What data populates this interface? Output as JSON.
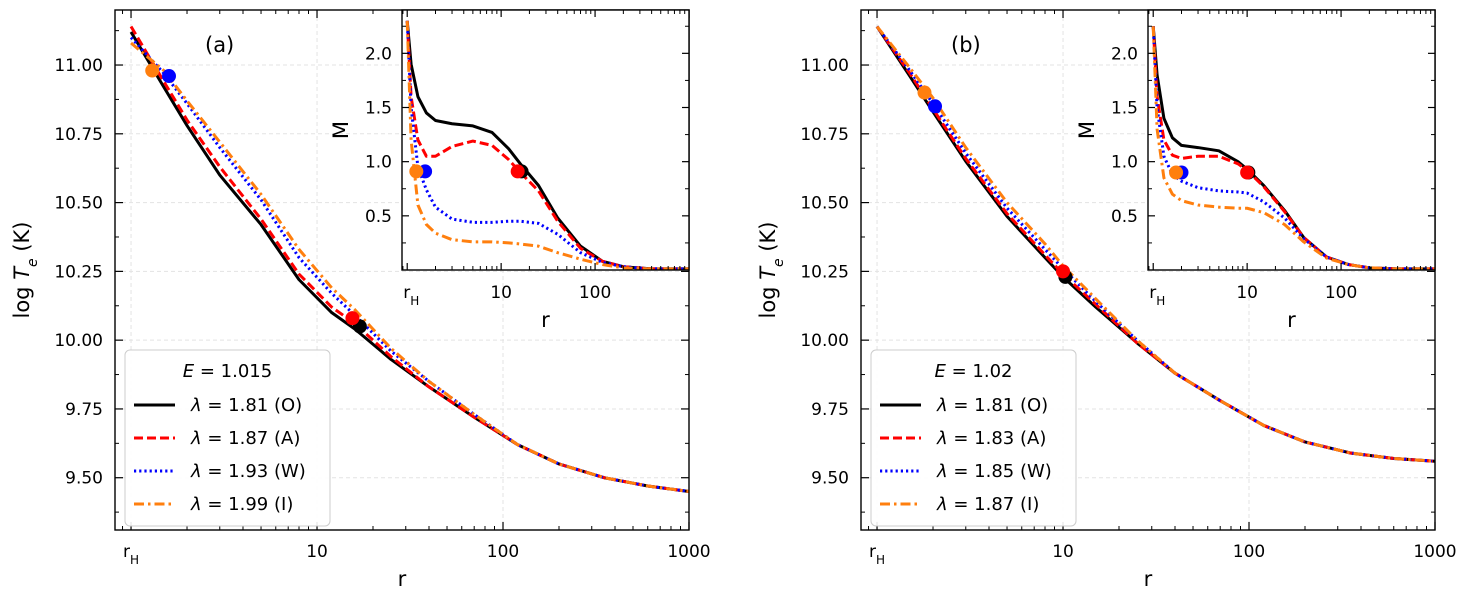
{
  "chart_data": [
    {
      "type": "line",
      "panel_label": "(a)",
      "xscale": "log",
      "xlim": [
        0.82,
        1000
      ],
      "ylim": [
        9.31,
        11.2
      ],
      "xlabel": "r",
      "ylabel": "log T_e (K)",
      "xticks": [
        {
          "value": 1,
          "label": "r_H"
        },
        {
          "value": 10,
          "label": "10"
        },
        {
          "value": 100,
          "label": "100"
        },
        {
          "value": 1000,
          "label": "1000"
        }
      ],
      "yticks": [
        9.5,
        9.75,
        10.0,
        10.25,
        10.5,
        10.75,
        11.0
      ],
      "ytick_labels": [
        "9.50",
        "9.75",
        "10.00",
        "10.25",
        "10.50",
        "10.75",
        "11.00"
      ],
      "grid": true,
      "legend": {
        "placement": "lower-left",
        "title": "E = 1.015",
        "title_E": "E",
        "title_value": "1.015"
      },
      "series": [
        {
          "name": "λ = 1.81 (O)",
          "lambda_value": "1.81",
          "tag": "(O)",
          "color": "#000000",
          "style": "solid",
          "x": [
            1,
            1.5,
            2,
            3,
            5,
            8,
            12,
            16,
            25,
            40,
            70,
            120,
            200,
            350,
            600,
            1000
          ],
          "y": [
            11.12,
            10.92,
            10.78,
            10.6,
            10.42,
            10.22,
            10.1,
            10.04,
            9.93,
            9.83,
            9.72,
            9.62,
            9.55,
            9.5,
            9.47,
            9.45
          ]
        },
        {
          "name": "λ = 1.87 (A)",
          "lambda_value": "1.87",
          "tag": "(A)",
          "color": "#ff0000",
          "style": "dashed",
          "x": [
            1,
            1.5,
            2,
            3,
            5,
            8,
            12,
            16,
            25,
            40,
            70,
            120,
            200,
            350,
            600,
            1000
          ],
          "y": [
            11.14,
            10.94,
            10.8,
            10.63,
            10.44,
            10.24,
            10.12,
            10.06,
            9.94,
            9.83,
            9.72,
            9.62,
            9.55,
            9.5,
            9.47,
            9.45
          ]
        },
        {
          "name": "λ = 1.93 (W)",
          "lambda_value": "1.93",
          "tag": "(W)",
          "color": "#0000ff",
          "style": "dotted",
          "x": [
            1,
            1.5,
            2,
            3,
            5,
            8,
            12,
            16,
            25,
            40,
            70,
            120,
            200,
            350,
            600,
            1000
          ],
          "y": [
            11.1,
            10.97,
            10.86,
            10.7,
            10.51,
            10.3,
            10.17,
            10.09,
            9.96,
            9.85,
            9.73,
            9.62,
            9.55,
            9.5,
            9.47,
            9.45
          ]
        },
        {
          "name": "λ = 1.99 (I)",
          "lambda_value": "1.99",
          "tag": "(I)",
          "color": "#ff7f0e",
          "style": "dashdot",
          "x": [
            1,
            1.5,
            2,
            3,
            5,
            8,
            12,
            16,
            25,
            40,
            70,
            120,
            200,
            350,
            600,
            1000
          ],
          "y": [
            11.08,
            10.98,
            10.87,
            10.72,
            10.53,
            10.33,
            10.19,
            10.11,
            9.97,
            9.85,
            9.73,
            9.62,
            9.55,
            9.5,
            9.47,
            9.45
          ]
        }
      ],
      "markers": [
        {
          "series": "O",
          "x": 1.6,
          "y": 10.96,
          "color": "#0000ff"
        },
        {
          "series": "I",
          "x": 1.3,
          "y": 10.98,
          "color": "#ff7f0e"
        },
        {
          "series": "O",
          "x": 17.0,
          "y": 10.05,
          "color": "#000000"
        },
        {
          "series": "A",
          "x": 15.5,
          "y": 10.08,
          "color": "#ff0000"
        }
      ],
      "inset": {
        "xscale": "log",
        "xlim": [
          0.88,
          1000
        ],
        "ylim": [
          0.0,
          2.4
        ],
        "xlabel": "r",
        "ylabel": "M",
        "xticks": [
          {
            "value": 1,
            "label": "r_H"
          },
          {
            "value": 10,
            "label": "10"
          },
          {
            "value": 100,
            "label": "100"
          }
        ],
        "yticks": [
          0.5,
          1.0,
          1.5,
          2.0
        ],
        "ytick_labels": [
          "0.5",
          "1.0",
          "1.5",
          "2.0"
        ],
        "series": [
          {
            "name": "O",
            "color": "#000000",
            "style": "solid",
            "x": [
              1,
              1.1,
              1.3,
              1.6,
              2,
              3,
              5,
              8,
              12,
              16,
              25,
              40,
              70,
              120,
              200,
              400,
              1000
            ],
            "y": [
              2.3,
              1.9,
              1.6,
              1.45,
              1.38,
              1.35,
              1.33,
              1.27,
              1.12,
              0.98,
              0.78,
              0.48,
              0.22,
              0.08,
              0.03,
              0.01,
              0.01
            ]
          },
          {
            "name": "A",
            "color": "#ff0000",
            "style": "dashed",
            "x": [
              1,
              1.1,
              1.3,
              1.6,
              2,
              3,
              5,
              8,
              12,
              16,
              25,
              40,
              70,
              120,
              200,
              400,
              1000
            ],
            "y": [
              2.3,
              1.6,
              1.2,
              1.05,
              1.05,
              1.14,
              1.19,
              1.15,
              1.02,
              0.9,
              0.73,
              0.45,
              0.2,
              0.08,
              0.03,
              0.01,
              0.01
            ]
          },
          {
            "name": "W",
            "color": "#0000ff",
            "style": "dotted",
            "x": [
              1,
              1.1,
              1.3,
              1.6,
              2,
              3,
              5,
              8,
              12,
              16,
              25,
              40,
              70,
              120,
              200,
              400,
              1000
            ],
            "y": [
              2.3,
              1.5,
              0.95,
              0.74,
              0.58,
              0.47,
              0.44,
              0.44,
              0.45,
              0.45,
              0.43,
              0.33,
              0.16,
              0.07,
              0.03,
              0.01,
              0.01
            ]
          },
          {
            "name": "I",
            "color": "#ff7f0e",
            "style": "dashdot",
            "x": [
              1,
              1.1,
              1.3,
              1.6,
              2,
              3,
              5,
              8,
              12,
              16,
              25,
              40,
              70,
              120,
              200,
              400,
              1000
            ],
            "y": [
              2.3,
              1.2,
              0.6,
              0.42,
              0.34,
              0.28,
              0.26,
              0.26,
              0.25,
              0.24,
              0.22,
              0.16,
              0.1,
              0.05,
              0.02,
              0.01,
              0.01
            ]
          }
        ],
        "markers": [
          {
            "x": 1.55,
            "y": 0.91,
            "color": "#0000ff"
          },
          {
            "x": 1.25,
            "y": 0.91,
            "color": "#ff7f0e"
          },
          {
            "x": 16.5,
            "y": 0.91,
            "color": "#000000"
          },
          {
            "x": 15.0,
            "y": 0.91,
            "color": "#ff0000"
          }
        ]
      }
    },
    {
      "type": "line",
      "panel_label": "(b)",
      "xscale": "log",
      "xlim": [
        0.82,
        1000
      ],
      "ylim": [
        9.31,
        11.2
      ],
      "xlabel": "r",
      "ylabel": "log T_e (K)",
      "xticks": [
        {
          "value": 1,
          "label": "r_H"
        },
        {
          "value": 10,
          "label": "10"
        },
        {
          "value": 100,
          "label": "100"
        },
        {
          "value": 1000,
          "label": "1000"
        }
      ],
      "yticks": [
        9.5,
        9.75,
        10.0,
        10.25,
        10.5,
        10.75,
        11.0
      ],
      "ytick_labels": [
        "9.50",
        "9.75",
        "10.00",
        "10.25",
        "10.50",
        "10.75",
        "11.00"
      ],
      "grid": true,
      "legend": {
        "placement": "lower-left",
        "title": "E = 1.02",
        "title_E": "E",
        "title_value": "1.02"
      },
      "series": [
        {
          "name": "λ = 1.81 (O)",
          "lambda_value": "1.81",
          "tag": "(O)",
          "color": "#000000",
          "style": "solid",
          "x": [
            1,
            1.5,
            2,
            3,
            5,
            8,
            10,
            15,
            25,
            40,
            70,
            120,
            200,
            350,
            600,
            1000
          ],
          "y": [
            11.14,
            10.96,
            10.83,
            10.65,
            10.45,
            10.3,
            10.23,
            10.12,
            9.99,
            9.88,
            9.78,
            9.69,
            9.63,
            9.59,
            9.57,
            9.56
          ]
        },
        {
          "name": "λ = 1.83 (A)",
          "lambda_value": "1.83",
          "tag": "(A)",
          "color": "#ff0000",
          "style": "dashed",
          "x": [
            1,
            1.5,
            2,
            3,
            5,
            8,
            10,
            15,
            25,
            40,
            70,
            120,
            200,
            350,
            600,
            1000
          ],
          "y": [
            11.14,
            10.97,
            10.84,
            10.66,
            10.46,
            10.31,
            10.24,
            10.13,
            9.99,
            9.88,
            9.78,
            9.69,
            9.63,
            9.59,
            9.57,
            9.56
          ]
        },
        {
          "name": "λ = 1.85 (W)",
          "lambda_value": "1.85",
          "tag": "(W)",
          "color": "#0000ff",
          "style": "dotted",
          "x": [
            1,
            1.5,
            2,
            3,
            5,
            8,
            10,
            15,
            25,
            40,
            70,
            120,
            200,
            350,
            600,
            1000
          ],
          "y": [
            11.14,
            10.98,
            10.86,
            10.68,
            10.48,
            10.33,
            10.26,
            10.14,
            10.0,
            9.88,
            9.78,
            9.69,
            9.63,
            9.59,
            9.57,
            9.56
          ]
        },
        {
          "name": "λ = 1.87 (I)",
          "lambda_value": "1.87",
          "tag": "(I)",
          "color": "#ff7f0e",
          "style": "dashdot",
          "x": [
            1,
            1.5,
            2,
            3,
            5,
            8,
            10,
            15,
            25,
            40,
            70,
            120,
            200,
            350,
            600,
            1000
          ],
          "y": [
            11.14,
            10.99,
            10.88,
            10.7,
            10.5,
            10.35,
            10.27,
            10.15,
            10.0,
            9.88,
            9.78,
            9.69,
            9.63,
            9.59,
            9.57,
            9.56
          ]
        }
      ],
      "markers": [
        {
          "series": "W",
          "x": 2.05,
          "y": 10.85,
          "color": "#0000ff"
        },
        {
          "series": "I",
          "x": 1.8,
          "y": 10.9,
          "color": "#ff7f0e"
        },
        {
          "series": "O",
          "x": 10.3,
          "y": 10.23,
          "color": "#000000"
        },
        {
          "series": "A",
          "x": 10.0,
          "y": 10.25,
          "color": "#ff0000"
        }
      ],
      "inset": {
        "xscale": "log",
        "xlim": [
          0.88,
          1000
        ],
        "ylim": [
          0.0,
          2.4
        ],
        "xlabel": "r",
        "ylabel": "M",
        "xticks": [
          {
            "value": 1,
            "label": "r_H"
          },
          {
            "value": 10,
            "label": "10"
          },
          {
            "value": 100,
            "label": "100"
          }
        ],
        "yticks": [
          0.5,
          1.0,
          1.5,
          2.0
        ],
        "ytick_labels": [
          "0.5",
          "1.0",
          "1.5",
          "2.0"
        ],
        "series": [
          {
            "name": "O",
            "color": "#000000",
            "style": "solid",
            "x": [
              1,
              1.1,
              1.3,
              1.6,
              2,
              3,
              5,
              8,
              10,
              15,
              25,
              40,
              70,
              120,
              200,
              400,
              1000
            ],
            "y": [
              2.25,
              1.8,
              1.4,
              1.22,
              1.15,
              1.13,
              1.1,
              1.0,
              0.93,
              0.78,
              0.55,
              0.3,
              0.12,
              0.05,
              0.02,
              0.01,
              0.01
            ]
          },
          {
            "name": "A",
            "color": "#ff0000",
            "style": "dashed",
            "x": [
              1,
              1.1,
              1.3,
              1.6,
              2,
              3,
              5,
              8,
              10,
              15,
              25,
              40,
              70,
              120,
              200,
              400,
              1000
            ],
            "y": [
              2.25,
              1.6,
              1.2,
              1.06,
              1.03,
              1.05,
              1.05,
              0.98,
              0.92,
              0.77,
              0.54,
              0.3,
              0.12,
              0.05,
              0.02,
              0.01,
              0.01
            ]
          },
          {
            "name": "W",
            "color": "#0000ff",
            "style": "dotted",
            "x": [
              1,
              1.1,
              1.3,
              1.6,
              2,
              3,
              5,
              8,
              10,
              15,
              25,
              40,
              70,
              120,
              200,
              400,
              1000
            ],
            "y": [
              2.25,
              1.5,
              1.05,
              0.88,
              0.82,
              0.76,
              0.73,
              0.72,
              0.71,
              0.63,
              0.48,
              0.29,
              0.12,
              0.05,
              0.02,
              0.01,
              0.01
            ]
          },
          {
            "name": "I",
            "color": "#ff7f0e",
            "style": "dashdot",
            "x": [
              1,
              1.1,
              1.3,
              1.6,
              2,
              3,
              5,
              8,
              10,
              15,
              25,
              40,
              70,
              120,
              200,
              400,
              1000
            ],
            "y": [
              2.25,
              1.3,
              0.85,
              0.7,
              0.64,
              0.6,
              0.58,
              0.57,
              0.57,
              0.53,
              0.42,
              0.26,
              0.11,
              0.05,
              0.02,
              0.01,
              0.01
            ]
          }
        ],
        "markers": [
          {
            "x": 2.0,
            "y": 0.9,
            "color": "#0000ff"
          },
          {
            "x": 1.75,
            "y": 0.9,
            "color": "#ff7f0e"
          },
          {
            "x": 10.3,
            "y": 0.9,
            "color": "#000000"
          },
          {
            "x": 10.0,
            "y": 0.9,
            "color": "#ff0000"
          }
        ]
      }
    }
  ]
}
